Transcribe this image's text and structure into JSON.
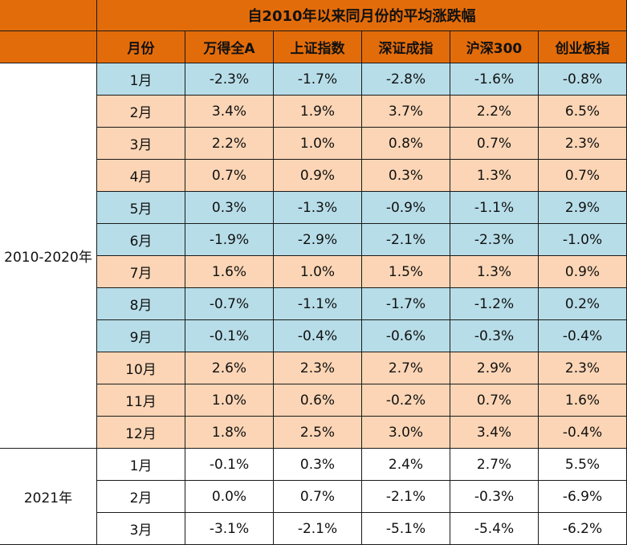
{
  "title": "自2010年以来同月份的平均涨跌幅",
  "colors": {
    "header": "#e36c0a",
    "up_month": "#fbd5b5",
    "down_month": "#b7dde8",
    "recent": "#ffffff",
    "border": "#1a1a1a"
  },
  "columns": [
    "月份",
    "万得全A",
    "上证指数",
    "深证成指",
    "沪深300",
    "创业板指"
  ],
  "groups": [
    {
      "label": "2010-2020年",
      "rows": [
        {
          "month": "1月",
          "tone": "blue",
          "values": [
            "-2.3%",
            "-1.7%",
            "-2.8%",
            "-1.6%",
            "-0.8%"
          ]
        },
        {
          "month": "2月",
          "tone": "peach",
          "values": [
            "3.4%",
            "1.9%",
            "3.7%",
            "2.2%",
            "6.5%"
          ]
        },
        {
          "month": "3月",
          "tone": "peach",
          "values": [
            "2.2%",
            "1.0%",
            "0.8%",
            "0.7%",
            "2.3%"
          ]
        },
        {
          "month": "4月",
          "tone": "peach",
          "values": [
            "0.7%",
            "0.9%",
            "0.3%",
            "1.3%",
            "0.7%"
          ]
        },
        {
          "month": "5月",
          "tone": "blue",
          "values": [
            "0.3%",
            "-1.3%",
            "-0.9%",
            "-1.1%",
            "2.9%"
          ]
        },
        {
          "month": "6月",
          "tone": "blue",
          "values": [
            "-1.9%",
            "-2.9%",
            "-2.1%",
            "-2.3%",
            "-1.0%"
          ]
        },
        {
          "month": "7月",
          "tone": "peach",
          "values": [
            "1.6%",
            "1.0%",
            "1.5%",
            "1.3%",
            "0.9%"
          ]
        },
        {
          "month": "8月",
          "tone": "blue",
          "values": [
            "-0.7%",
            "-1.1%",
            "-1.7%",
            "-1.2%",
            "0.2%"
          ]
        },
        {
          "month": "9月",
          "tone": "blue",
          "values": [
            "-0.1%",
            "-0.4%",
            "-0.6%",
            "-0.3%",
            "-0.4%"
          ]
        },
        {
          "month": "10月",
          "tone": "peach",
          "values": [
            "2.6%",
            "2.3%",
            "2.7%",
            "2.9%",
            "2.3%"
          ]
        },
        {
          "month": "11月",
          "tone": "peach",
          "values": [
            "1.0%",
            "0.6%",
            "-0.2%",
            "0.7%",
            "1.6%"
          ]
        },
        {
          "month": "12月",
          "tone": "peach",
          "values": [
            "1.8%",
            "2.5%",
            "3.0%",
            "3.4%",
            "-0.4%"
          ]
        }
      ]
    },
    {
      "label": "2021年",
      "rows": [
        {
          "month": "1月",
          "tone": "white",
          "values": [
            "-0.1%",
            "0.3%",
            "2.4%",
            "2.7%",
            "5.5%"
          ]
        },
        {
          "month": "2月",
          "tone": "white",
          "values": [
            "0.0%",
            "0.7%",
            "-2.1%",
            "-0.3%",
            "-6.9%"
          ]
        },
        {
          "month": "3月",
          "tone": "white",
          "values": [
            "-3.1%",
            "-2.1%",
            "-5.1%",
            "-5.4%",
            "-6.2%"
          ]
        }
      ]
    }
  ]
}
